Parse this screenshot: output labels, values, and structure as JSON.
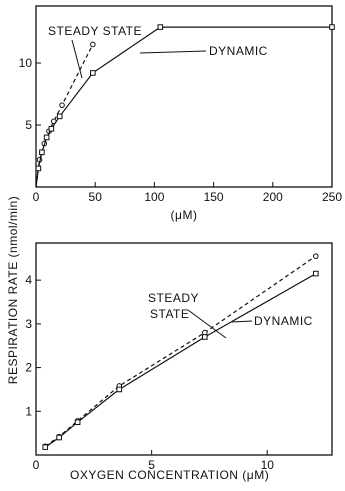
{
  "ylabel": "RESPIRATION RATE (nmol/min)",
  "chart_data": [
    {
      "type": "line",
      "xlabel": "(μM)",
      "xlim": [
        0,
        250
      ],
      "ylim": [
        0,
        14.6
      ],
      "xticks": [
        0,
        50,
        100,
        150,
        200,
        250
      ],
      "yticks": [
        5,
        10
      ],
      "series": [
        {
          "name": "STEADY STATE",
          "style": "dashed",
          "marker": "circle",
          "x": [
            0,
            3,
            7,
            11,
            15,
            22,
            48
          ],
          "y": [
            0,
            2.2,
            3.5,
            4.5,
            5.3,
            6.6,
            11.5
          ]
        },
        {
          "name": "DYNAMIC",
          "style": "solid",
          "marker": "square",
          "x": [
            0,
            2,
            5,
            9,
            13,
            20,
            48,
            105,
            250
          ],
          "y": [
            0,
            1.5,
            2.8,
            4.0,
            4.7,
            5.7,
            9.2,
            12.9,
            12.9
          ]
        }
      ]
    },
    {
      "type": "line",
      "xlabel": "OXYGEN CONCENTRATION (μM)",
      "xlim": [
        0,
        12.8
      ],
      "ylim": [
        0,
        4.85
      ],
      "xticks": [
        0,
        5,
        10
      ],
      "yticks": [
        1,
        2,
        3,
        4
      ],
      "series": [
        {
          "name": "STEADY STATE",
          "style": "dashed",
          "marker": "circle",
          "x": [
            0.4,
            1.0,
            1.8,
            3.6,
            7.3,
            12.1
          ],
          "y": [
            0.2,
            0.42,
            0.78,
            1.58,
            2.8,
            4.55
          ]
        },
        {
          "name": "DYNAMIC",
          "style": "solid",
          "marker": "square",
          "x": [
            0.4,
            1.0,
            1.8,
            3.6,
            7.3,
            12.1
          ],
          "y": [
            0.18,
            0.4,
            0.75,
            1.5,
            2.7,
            4.15
          ]
        }
      ]
    }
  ],
  "annotations": {
    "top_steady": "STEADY STATE",
    "top_dynamic": "DYNAMIC",
    "bottom_steady_1": "STEADY",
    "bottom_steady_2": "STATE",
    "bottom_dynamic": "DYNAMIC"
  },
  "colors": {
    "ink": "#111111"
  }
}
